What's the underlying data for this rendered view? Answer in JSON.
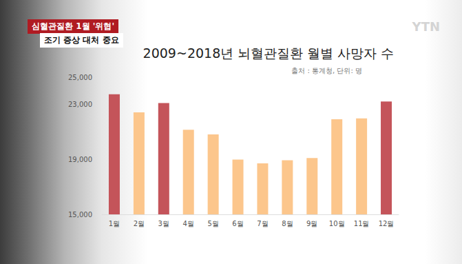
{
  "overlay": {
    "banner": "심혈관질환 1월 '위협'",
    "subbanner": "조기 증상 대처 중요",
    "logo": "YTN"
  },
  "chart_data": {
    "type": "bar",
    "title": "2009~2018년 뇌혈관질환 월별 사망자 수",
    "subtitle": "출처 : 통계청, 단위: 명",
    "categories": [
      "1월",
      "2월",
      "3월",
      "4월",
      "5월",
      "6월",
      "7월",
      "8월",
      "9월",
      "10월",
      "11월",
      "12월"
    ],
    "values": [
      23760,
      22440,
      23110,
      21170,
      20830,
      19000,
      18720,
      18940,
      19110,
      21940,
      22000,
      23230
    ],
    "colors": [
      "#c4545a",
      "#fcc68c",
      "#c4545a",
      "#fcc68c",
      "#fcc68c",
      "#fcc68c",
      "#fcc68c",
      "#fcc68c",
      "#fcc68c",
      "#fcc68c",
      "#fcc68c",
      "#c4545a"
    ],
    "ylim": [
      15000,
      25000
    ],
    "yticks": [
      {
        "value": 15000,
        "label": "15,000"
      },
      {
        "value": 19000,
        "label": "19,000"
      },
      {
        "value": 23000,
        "label": "23,000"
      },
      {
        "value": 25000,
        "label": "25,000"
      }
    ],
    "grid": false
  }
}
